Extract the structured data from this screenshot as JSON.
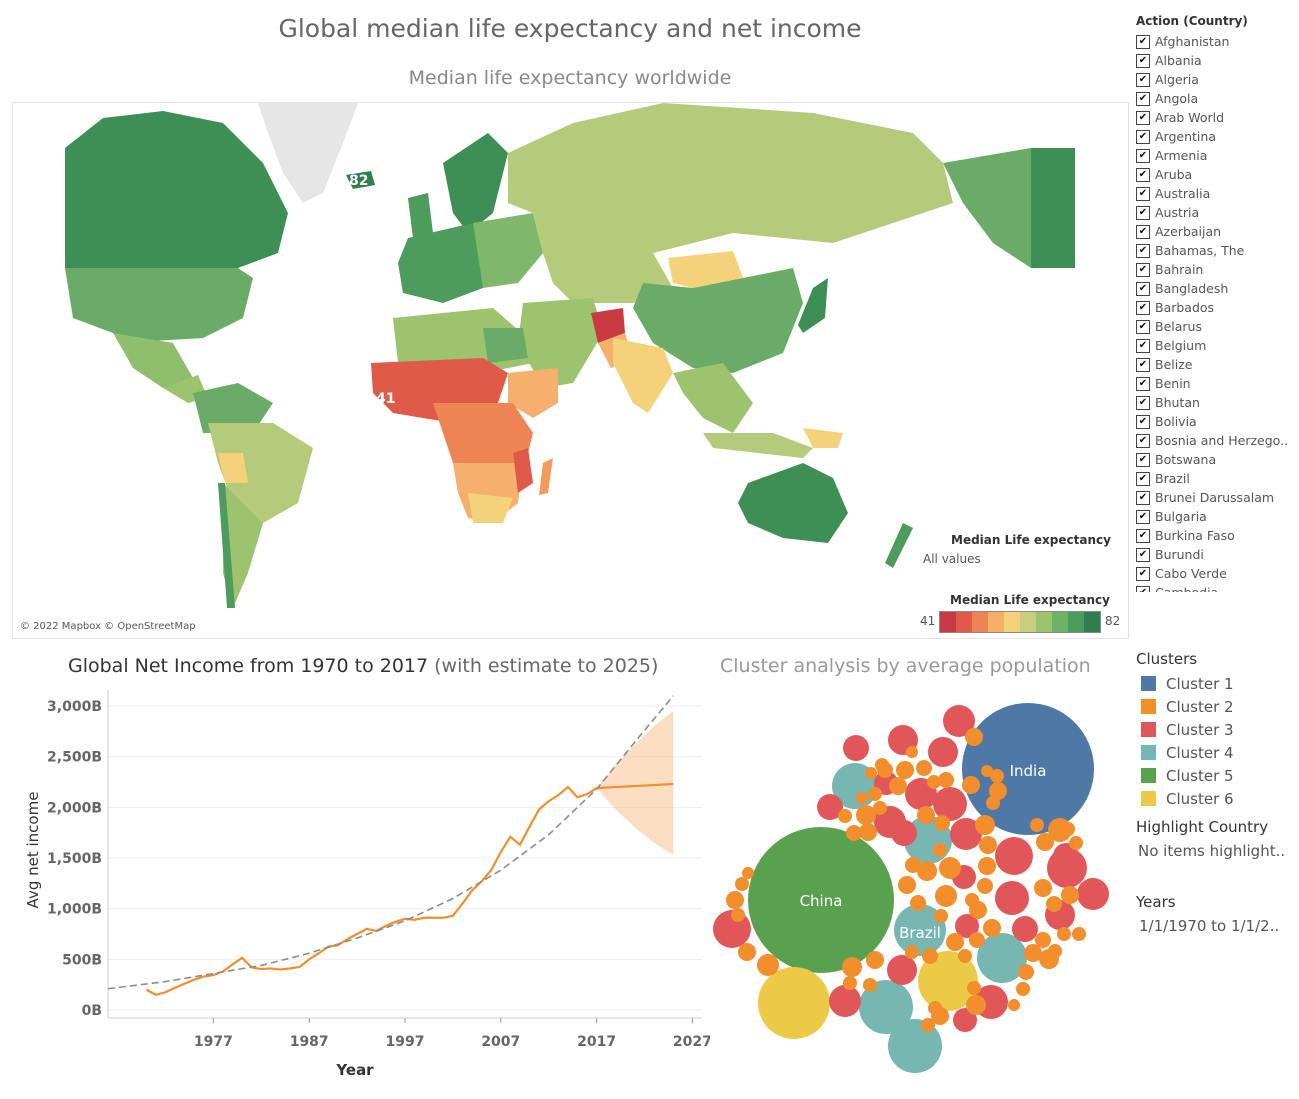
{
  "header": {
    "title": "Global median life expectancy and net income"
  },
  "map": {
    "title": "Median life expectancy worldwide",
    "credit": "© 2022 Mapbox © OpenStreetMap",
    "labels": {
      "high": "82",
      "low": "41"
    },
    "legend": {
      "title": "Median Life expectancy",
      "all_values": "All values",
      "min": "41",
      "max": "82",
      "colors": [
        "#c93a43",
        "#e05a4a",
        "#ee8454",
        "#f7ae66",
        "#f4d27a",
        "#c7cf7e",
        "#9ec36f",
        "#6db267",
        "#4d9c5d",
        "#2f7f4d"
      ]
    }
  },
  "filter": {
    "title": "Action (Country)",
    "check": "✔",
    "countries": [
      "Afghanistan",
      "Albania",
      "Algeria",
      "Angola",
      "Arab World",
      "Argentina",
      "Armenia",
      "Aruba",
      "Australia",
      "Austria",
      "Azerbaijan",
      "Bahamas, The",
      "Bahrain",
      "Bangladesh",
      "Barbados",
      "Belarus",
      "Belgium",
      "Belize",
      "Benin",
      "Bhutan",
      "Bolivia",
      "Bosnia and Herzego..",
      "Botswana",
      "Brazil",
      "Brunei Darussalam",
      "Bulgaria",
      "Burkina Faso",
      "Burundi",
      "Cabo Verde",
      "Cambodia"
    ]
  },
  "line_chart": {
    "title": "Global Net Income from 1970 to 2017",
    "subtitle": " (with estimate to 2025)"
  },
  "bubble_chart": {
    "title": "Cluster analysis by average population"
  },
  "clusters": {
    "title": "Clusters",
    "items": [
      {
        "label": "Cluster 1",
        "color": "#4e79a7"
      },
      {
        "label": "Cluster 2",
        "color": "#f28e2b"
      },
      {
        "label": "Cluster 3",
        "color": "#e15759"
      },
      {
        "label": "Cluster 4",
        "color": "#76b7b2"
      },
      {
        "label": "Cluster 5",
        "color": "#59a14f"
      },
      {
        "label": "Cluster 6",
        "color": "#edc948"
      }
    ]
  },
  "highlight": {
    "title": "Highlight Country",
    "value": "No items highlight.."
  },
  "years": {
    "title": "Years",
    "value": "1/1/1970 to 1/1/2.."
  },
  "chart_data": [
    {
      "type": "line",
      "title": "Global Net Income from 1970 to 2017 (with estimate to 2025)",
      "xlabel": "Year",
      "ylabel": "Avg net income",
      "x_ticks": [
        "1977",
        "1987",
        "1997",
        "2007",
        "2017",
        "2027"
      ],
      "y_ticks": [
        "0B",
        "500B",
        "1,000B",
        "1,500B",
        "2,000B",
        "2,500B",
        "3,000B"
      ],
      "ylim": [
        0,
        3000
      ],
      "xlim": [
        1966,
        2028
      ],
      "grid": true,
      "series": [
        {
          "name": "Avg net income",
          "color": "#f28e2b",
          "x": [
            1970,
            1971,
            1972,
            1973,
            1974,
            1975,
            1976,
            1977,
            1978,
            1979,
            1980,
            1981,
            1982,
            1983,
            1984,
            1985,
            1986,
            1987,
            1988,
            1989,
            1990,
            1991,
            1992,
            1993,
            1994,
            1995,
            1996,
            1997,
            1998,
            1999,
            2000,
            2001,
            2002,
            2003,
            2004,
            2005,
            2006,
            2007,
            2008,
            2009,
            2010,
            2011,
            2012,
            2013,
            2014,
            2015,
            2016,
            2017
          ],
          "y": [
            200,
            150,
            175,
            220,
            260,
            300,
            330,
            345,
            380,
            450,
            515,
            420,
            405,
            410,
            400,
            410,
            425,
            500,
            560,
            625,
            640,
            700,
            750,
            800,
            780,
            830,
            870,
            900,
            890,
            910,
            910,
            910,
            930,
            1050,
            1180,
            1270,
            1380,
            1560,
            1710,
            1630,
            1810,
            1980,
            2060,
            2120,
            2200,
            2100,
            2130,
            2190
          ]
        },
        {
          "name": "Estimate",
          "color": "#f28e2b",
          "x": [
            2017,
            2025
          ],
          "y": [
            2190,
            2230
          ]
        },
        {
          "name": "Trend",
          "color": "#8c8c8c",
          "x": [
            1966,
            1972,
            1977,
            1982,
            1987,
            1992,
            1997,
            2002,
            2007,
            2012,
            2017,
            2022,
            2025
          ],
          "y": [
            210,
            280,
            360,
            440,
            560,
            710,
            880,
            1100,
            1380,
            1730,
            2180,
            2760,
            3100
          ]
        }
      ],
      "band": {
        "x": [
          2017,
          2019,
          2021,
          2023,
          2025
        ],
        "lower": [
          2190,
          1980,
          1800,
          1650,
          1530
        ],
        "upper": [
          2190,
          2420,
          2620,
          2800,
          2950
        ]
      }
    },
    {
      "type": "bubble",
      "title": "Cluster analysis by average population",
      "labelled": [
        {
          "label": "India",
          "cluster": "Cluster 1"
        },
        {
          "label": "China",
          "cluster": "Cluster 5"
        },
        {
          "label": "Brazil",
          "cluster": "Cluster 4"
        }
      ]
    }
  ]
}
